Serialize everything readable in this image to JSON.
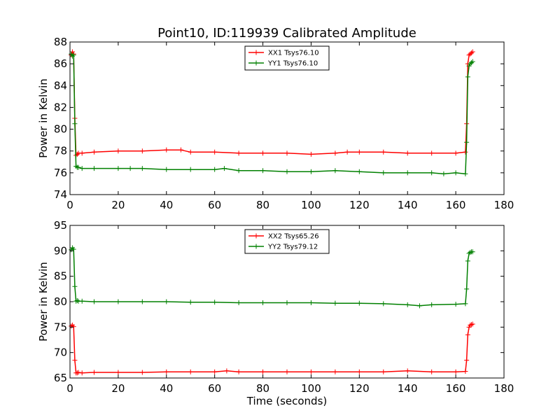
{
  "title": "Point10, ID:119939 Calibrated Amplitude",
  "chart_data": [
    {
      "type": "line",
      "ylabel": "Power in Kelvin",
      "xlabel": "",
      "xlim": [
        0,
        180
      ],
      "ylim": [
        74,
        88
      ],
      "xticks": [
        0,
        20,
        40,
        60,
        80,
        100,
        120,
        140,
        160,
        180
      ],
      "yticks": [
        74,
        76,
        78,
        80,
        82,
        84,
        86,
        88
      ],
      "legend_position": "top-center",
      "grid": false,
      "series": [
        {
          "name": "XX1 Tsys76.10",
          "color": "#ff0000",
          "x": [
            0.5,
            1.0,
            1.5,
            2.0,
            2.5,
            3.0,
            3.5,
            5,
            10,
            20,
            30,
            40,
            46,
            50,
            60,
            70,
            80,
            90,
            100,
            110,
            115,
            120,
            130,
            140,
            150,
            160,
            164,
            164.5,
            165,
            165.5,
            166,
            166.5,
            167
          ],
          "y": [
            86.8,
            87.1,
            86.9,
            81.0,
            77.6,
            77.7,
            77.8,
            77.8,
            77.9,
            78.0,
            78.0,
            78.1,
            78.1,
            77.9,
            77.9,
            77.8,
            77.8,
            77.8,
            77.7,
            77.8,
            77.9,
            77.9,
            77.9,
            77.8,
            77.8,
            77.8,
            77.9,
            80.5,
            86.0,
            86.8,
            86.9,
            87.0,
            87.1
          ]
        },
        {
          "name": "YY1 Tsys76.10",
          "color": "#008000",
          "x": [
            0.5,
            1.0,
            1.5,
            2.0,
            2.5,
            3.0,
            3.5,
            5,
            10,
            20,
            25,
            30,
            40,
            50,
            60,
            64,
            70,
            80,
            90,
            100,
            110,
            120,
            130,
            140,
            150,
            155,
            160,
            164,
            164.5,
            165,
            165.5,
            166,
            166.5,
            167
          ],
          "y": [
            86.9,
            86.7,
            86.8,
            80.5,
            76.6,
            76.5,
            76.5,
            76.4,
            76.4,
            76.4,
            76.4,
            76.4,
            76.3,
            76.3,
            76.3,
            76.4,
            76.2,
            76.2,
            76.1,
            76.1,
            76.2,
            76.1,
            76.0,
            76.0,
            76.0,
            75.9,
            76.0,
            75.9,
            78.8,
            84.8,
            85.8,
            86.0,
            86.1,
            86.2
          ]
        }
      ]
    },
    {
      "type": "line",
      "ylabel": "Power in Kelvin",
      "xlabel": "Time (seconds)",
      "xlim": [
        0,
        180
      ],
      "ylim": [
        65,
        95
      ],
      "xticks": [
        0,
        20,
        40,
        60,
        80,
        100,
        120,
        140,
        160,
        180
      ],
      "yticks": [
        65,
        70,
        75,
        80,
        85,
        90,
        95
      ],
      "legend_position": "top-center",
      "grid": false,
      "series": [
        {
          "name": "XX2 Tsys65.26",
          "color": "#ff0000",
          "x": [
            0.5,
            1.0,
            1.5,
            2.0,
            2.5,
            3.0,
            3.5,
            5,
            10,
            20,
            30,
            40,
            50,
            60,
            65,
            70,
            80,
            90,
            100,
            110,
            120,
            130,
            140,
            150,
            160,
            164,
            164.5,
            165,
            165.5,
            166,
            166.5,
            167
          ],
          "y": [
            75.2,
            75.4,
            75.1,
            68.5,
            66.0,
            66.0,
            66.1,
            66.0,
            66.1,
            66.1,
            66.1,
            66.2,
            66.2,
            66.2,
            66.4,
            66.2,
            66.2,
            66.2,
            66.2,
            66.2,
            66.2,
            66.2,
            66.4,
            66.2,
            66.2,
            66.3,
            68.5,
            73.5,
            75.0,
            75.4,
            75.5,
            75.6
          ]
        },
        {
          "name": "YY2 Tsys79.12",
          "color": "#008000",
          "x": [
            0.5,
            1.0,
            1.5,
            2.0,
            2.5,
            3.0,
            3.5,
            5,
            10,
            20,
            30,
            40,
            50,
            60,
            70,
            80,
            90,
            100,
            110,
            120,
            130,
            140,
            145,
            150,
            160,
            164,
            164.5,
            165,
            165.5,
            166,
            166.5,
            167
          ],
          "y": [
            90.2,
            90.6,
            90.3,
            83.0,
            80.1,
            80.2,
            80.1,
            80.1,
            80.0,
            80.0,
            80.0,
            80.0,
            79.9,
            79.9,
            79.8,
            79.8,
            79.8,
            79.8,
            79.7,
            79.7,
            79.6,
            79.4,
            79.2,
            79.4,
            79.5,
            79.6,
            82.5,
            88.0,
            89.5,
            89.7,
            89.8,
            89.8
          ]
        }
      ]
    }
  ]
}
